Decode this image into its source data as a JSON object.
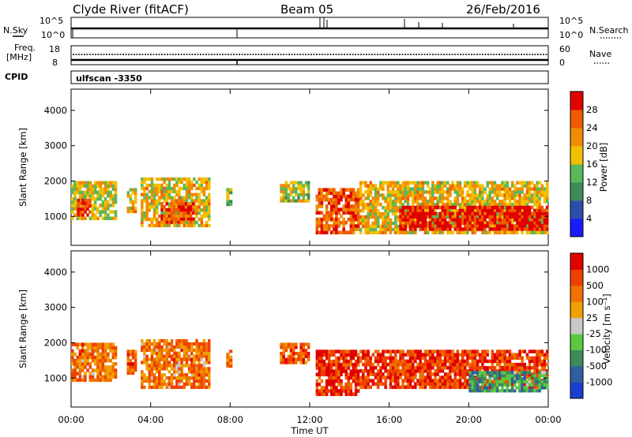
{
  "header": {
    "title": "Clyde River (fitACF)",
    "beam": "Beam 05",
    "date": "26/Feb/2016"
  },
  "top_panels": {
    "nsky_label": "N.Sky",
    "nsky_ticks": [
      "10^5",
      "10^0"
    ],
    "nsearch_label": "N.Search",
    "nsearch_ticks": [
      "10^5",
      "10^0"
    ],
    "freq_label": "Freq.",
    "freq_unit": "[MHz]",
    "freq_ticks": [
      "18",
      "8"
    ],
    "nave_label": "Nave",
    "nave_ticks": [
      "60",
      "0"
    ],
    "cpid_label": "CPID",
    "cpid_value": "ulfscan -3350"
  },
  "chart_data": [
    {
      "type": "heatmap",
      "name": "power",
      "ylabel": "Slant Range [km]",
      "xlabel": "Time UT",
      "ylim": [
        180,
        4600
      ],
      "xlim": [
        0,
        24
      ],
      "x_ticks": [
        "00:00",
        "04:00",
        "08:00",
        "12:00",
        "16:00",
        "20:00",
        "00:00"
      ],
      "y_ticks": [
        "1000",
        "2000",
        "3000",
        "4000"
      ],
      "y_tick_values": [
        1000,
        2000,
        3000,
        4000
      ],
      "colorbar": {
        "label": "Power [dB]",
        "ticks": [
          "4",
          "8",
          "12",
          "16",
          "20",
          "24",
          "28"
        ],
        "colors": [
          "#1a1aff",
          "#2b4fa8",
          "#3f8a5a",
          "#5ab85a",
          "#f0c000",
          "#f08c00",
          "#f05a00",
          "#e00000"
        ]
      },
      "regions": [
        {
          "t": [
            0.0,
            2.3
          ],
          "r": [
            900,
            2000
          ],
          "level": 0.55
        },
        {
          "t": [
            0.3,
            1.0
          ],
          "r": [
            1000,
            1500
          ],
          "level": 0.9
        },
        {
          "t": [
            2.8,
            3.3
          ],
          "r": [
            1100,
            1800
          ],
          "level": 0.6
        },
        {
          "t": [
            3.5,
            7.0
          ],
          "r": [
            700,
            2100
          ],
          "level": 0.6
        },
        {
          "t": [
            4.5,
            6.2
          ],
          "r": [
            800,
            1400
          ],
          "level": 0.85
        },
        {
          "t": [
            7.8,
            8.1
          ],
          "r": [
            1300,
            1800
          ],
          "level": 0.5
        },
        {
          "t": [
            10.5,
            12.0
          ],
          "r": [
            1400,
            2000
          ],
          "level": 0.5
        },
        {
          "t": [
            12.3,
            14.5
          ],
          "r": [
            500,
            1800
          ],
          "level": 0.8
        },
        {
          "t": [
            14.5,
            24.0
          ],
          "r": [
            500,
            2000
          ],
          "level": 0.6
        },
        {
          "t": [
            16.5,
            24.0
          ],
          "r": [
            600,
            1300
          ],
          "level": 0.95
        }
      ]
    },
    {
      "type": "heatmap",
      "name": "velocity",
      "ylabel": "Slant Range [km]",
      "xlabel": "Time UT",
      "ylim": [
        180,
        4600
      ],
      "xlim": [
        0,
        24
      ],
      "x_ticks": [
        "00:00",
        "04:00",
        "08:00",
        "12:00",
        "16:00",
        "20:00",
        "00:00"
      ],
      "y_ticks": [
        "1000",
        "2000",
        "3000",
        "4000"
      ],
      "y_tick_values": [
        1000,
        2000,
        3000,
        4000
      ],
      "colorbar": {
        "label": "Velocity [m s⁻¹]",
        "ticks": [
          "1000",
          "500",
          "100",
          "25",
          "-25",
          "-100",
          "-500",
          "-1000"
        ],
        "colors": [
          "#1a3fd0",
          "#2f5fa0",
          "#3f8a5a",
          "#5ac840",
          "#c8c8c8",
          "#f0a000",
          "#f07000",
          "#f04000",
          "#e00000"
        ]
      },
      "regions": [
        {
          "t": [
            0.0,
            2.3
          ],
          "r": [
            900,
            2000
          ],
          "level": 0.72
        },
        {
          "t": [
            2.8,
            3.3
          ],
          "r": [
            1100,
            1800
          ],
          "level": 0.75
        },
        {
          "t": [
            3.5,
            7.0
          ],
          "r": [
            700,
            2100
          ],
          "level": 0.72
        },
        {
          "t": [
            7.8,
            8.1
          ],
          "r": [
            1300,
            1800
          ],
          "level": 0.7
        },
        {
          "t": [
            10.5,
            12.0
          ],
          "r": [
            1400,
            2000
          ],
          "level": 0.8
        },
        {
          "t": [
            12.3,
            14.5
          ],
          "r": [
            500,
            1800
          ],
          "level": 0.88
        },
        {
          "t": [
            14.5,
            24.0
          ],
          "r": [
            700,
            1800
          ],
          "level": 0.85
        },
        {
          "t": [
            20.0,
            24.0
          ],
          "r": [
            600,
            1200
          ],
          "level": 0.3
        }
      ]
    }
  ]
}
